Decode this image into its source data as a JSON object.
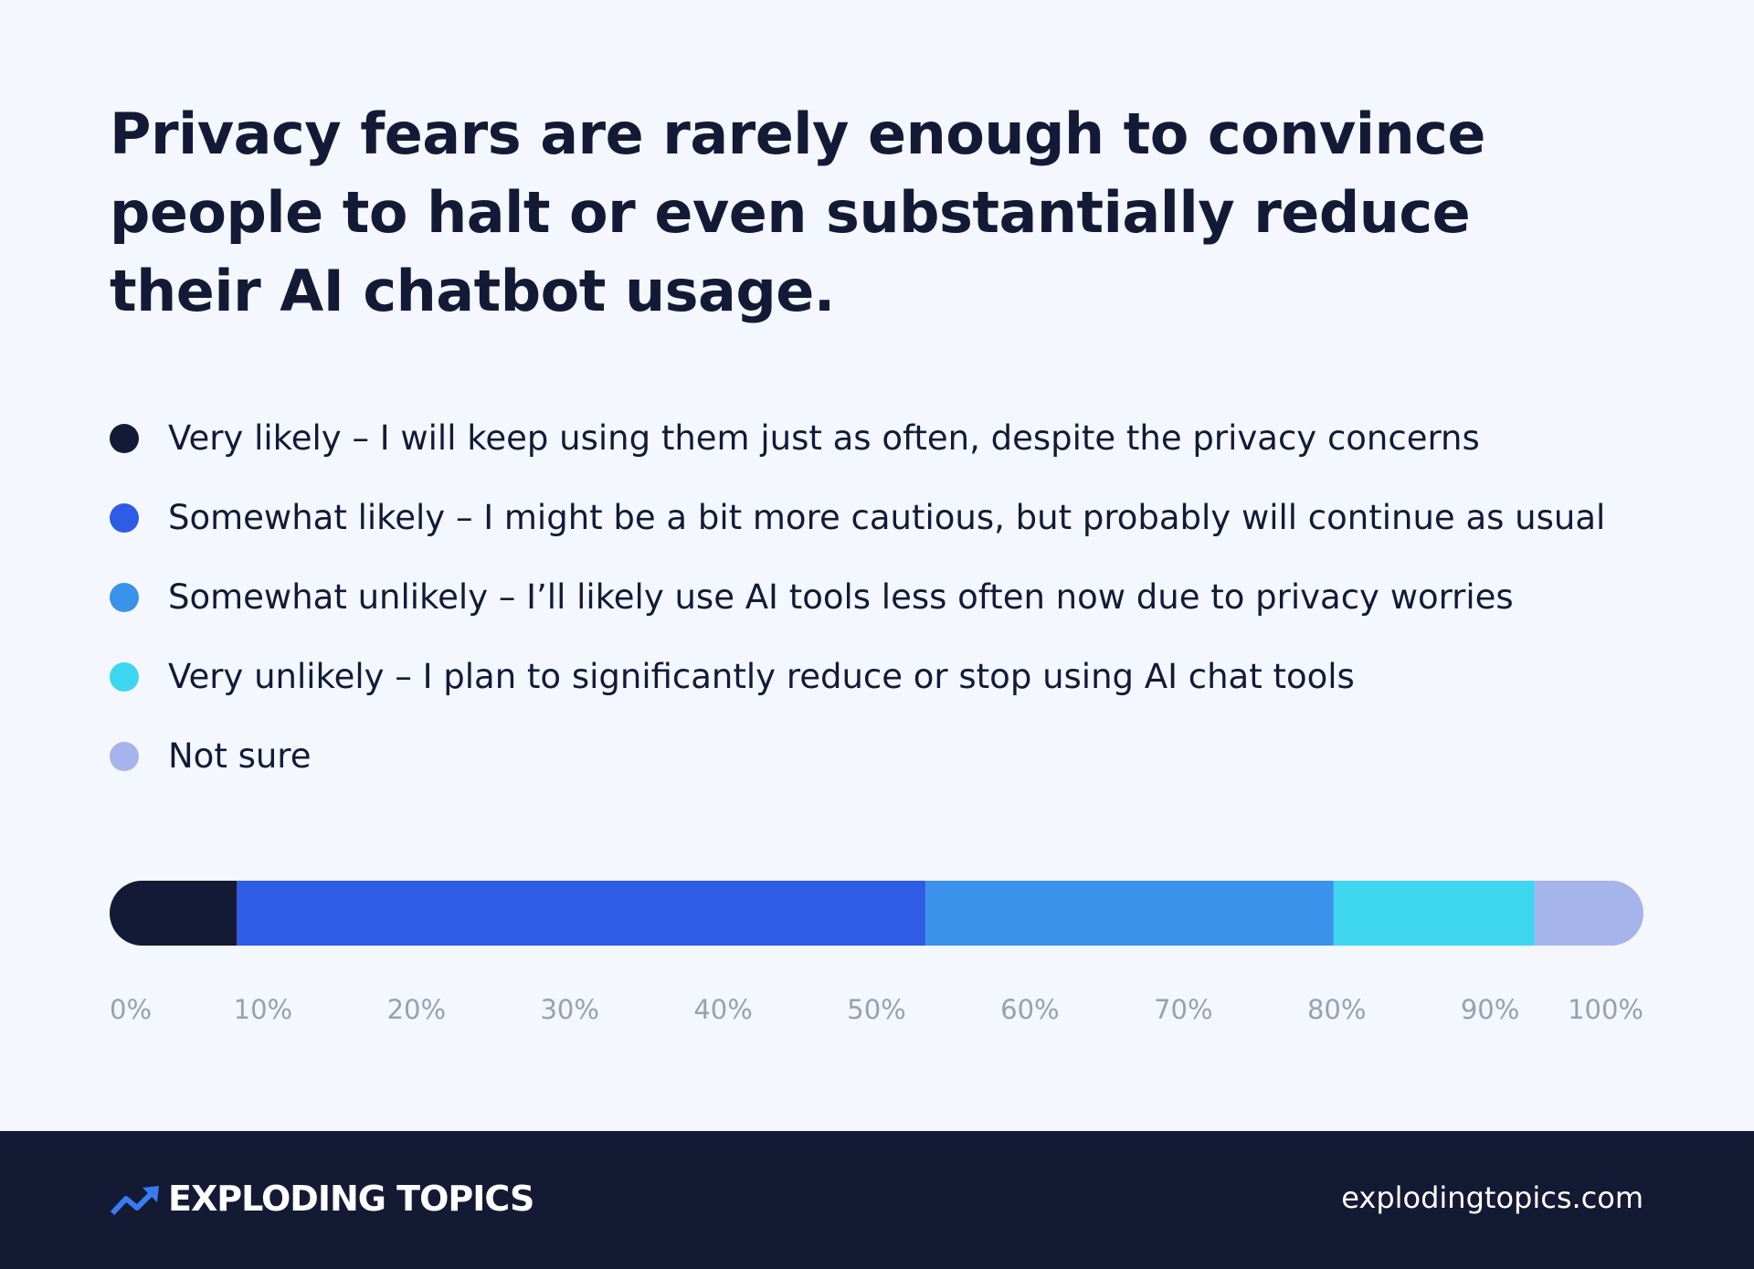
{
  "chart_data": {
    "type": "stacked-bar",
    "orientation": "horizontal",
    "title": "Privacy fears are rarely enough to convince people to halt or even substantially reduce their AI chatbot usage.",
    "series": [
      {
        "name": "Very likely – I will keep using them just as often, despite the privacy concerns",
        "color": "#141a36",
        "values": [
          8.3
        ]
      },
      {
        "name": "Somewhat likely – I might be a bit more cautious, but probably will continue as usual",
        "color": "#2f5ce6",
        "values": [
          44.9
        ]
      },
      {
        "name": "Somewhat unlikely – I’ll likely use AI tools less often now due to privacy worries",
        "color": "#3a92ea",
        "values": [
          26.6
        ]
      },
      {
        "name": "Very unlikely – I plan to significantly reduce or stop using AI chat tools",
        "color": "#3fd6ef",
        "values": [
          13.1
        ]
      },
      {
        "name": "Not sure",
        "color": "#a5b4ea",
        "values": [
          7.1
        ]
      }
    ],
    "xlim": [
      0,
      100
    ],
    "xticks": [
      {
        "value": 0,
        "label": "0%"
      },
      {
        "value": 10,
        "label": "10%"
      },
      {
        "value": 20,
        "label": "20%"
      },
      {
        "value": 30,
        "label": "30%"
      },
      {
        "value": 40,
        "label": "40%"
      },
      {
        "value": 50,
        "label": "50%"
      },
      {
        "value": 60,
        "label": "60%"
      },
      {
        "value": 70,
        "label": "70%"
      },
      {
        "value": 80,
        "label": "80%"
      },
      {
        "value": 90,
        "label": "90%"
      },
      {
        "value": 100,
        "label": "100%"
      }
    ]
  },
  "footer": {
    "brand": "EXPLODING TOPICS",
    "url": "explodingtopics.com"
  }
}
